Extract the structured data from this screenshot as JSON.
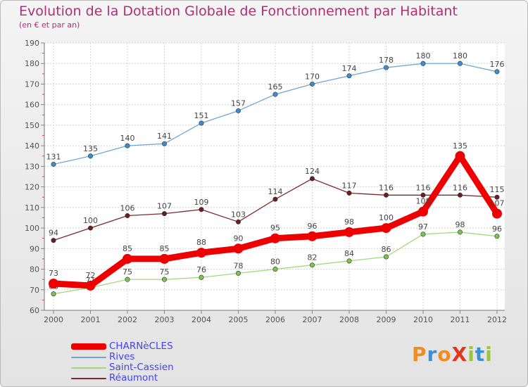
{
  "title": "Evolution de la Dotation Globale de Fonctionnement par Habitant",
  "subtitle": "(en € et par an)",
  "brand": "ProXiti",
  "brand_colors": [
    "#f18c1f",
    "#3b8fd6",
    "#f18c1f",
    "#e5341c",
    "#9bc43a",
    "#3b8fd6",
    "#9bc43a"
  ],
  "chart_data": {
    "type": "line",
    "title": "Evolution de la Dotation Globale de Fonctionnement par Habitant",
    "subtitle": "(en € et par an)",
    "xlabel": "",
    "ylabel": "",
    "ylim": [
      60,
      190
    ],
    "yticks": [
      60,
      70,
      80,
      90,
      100,
      110,
      120,
      130,
      140,
      150,
      160,
      170,
      180,
      190
    ],
    "x": [
      "2000",
      "2001",
      "2002",
      "2003",
      "2004",
      "2005",
      "2006",
      "2007",
      "2008",
      "2009",
      "2010",
      "2011",
      "2012"
    ],
    "grid": true,
    "legend_position": "bottom-left",
    "series": [
      {
        "name": "Rives",
        "color": "#6fa6d4",
        "marker": "#3d8dd0",
        "values": [
          131,
          135,
          140,
          141,
          151,
          157,
          165,
          170,
          174,
          178,
          180,
          180,
          176
        ]
      },
      {
        "name": "Saint-Cassien",
        "color": "#a3d97a",
        "marker": "#7cc44c",
        "values": [
          68,
          71,
          75,
          75,
          76,
          78,
          80,
          82,
          84,
          86,
          97,
          98,
          96
        ]
      },
      {
        "name": "Réaumont",
        "color": "#7a2a30",
        "marker": "#6b1d22",
        "values": [
          94,
          100,
          106,
          107,
          109,
          103,
          114,
          124,
          117,
          116,
          116,
          116,
          115
        ]
      },
      {
        "name": "CHARNèCLES",
        "color": "#ee0000",
        "marker": "#ee0000",
        "values": [
          73,
          72,
          85,
          85,
          88,
          90,
          95,
          96,
          98,
          100,
          108,
          135,
          107
        ]
      }
    ],
    "legend": [
      "CHARNèCLES",
      "Rives",
      "Saint-Cassien",
      "Réaumont"
    ]
  }
}
